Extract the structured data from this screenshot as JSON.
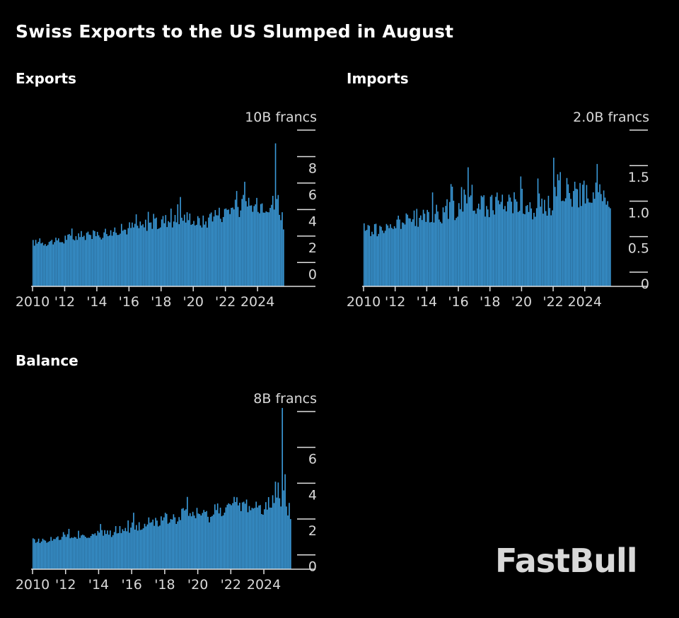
{
  "title": "Swiss Exports to the US Slumped in August",
  "logo_text": "FastBull",
  "colors": {
    "bar": "#3b9ad9",
    "axis": "#e0e0e0",
    "text": "#d9d9d9",
    "background": "#000000"
  },
  "chart_data": [
    {
      "id": "exports",
      "type": "bar",
      "title": "Exports",
      "unit_label": "10B francs",
      "x_start": "2010-01",
      "x_end": "2025-08",
      "x_tick_labels": [
        "2010",
        "'12",
        "'14",
        "'16",
        "'18",
        "'20",
        "'22",
        "2024"
      ],
      "y_ticks": [
        0,
        2,
        4,
        6,
        8,
        10
      ],
      "y_tick_labels": [
        "0",
        "2",
        "4",
        "6",
        "8"
      ],
      "ylim": [
        -1.8,
        10
      ],
      "annual_means": [
        1.5,
        1.6,
        1.9,
        2.0,
        2.1,
        2.5,
        2.7,
        2.9,
        3.2,
        3.4,
        3.1,
        3.7,
        4.1,
        4.2,
        4.5
      ],
      "year_2025": [
        4.0,
        9.0,
        4.8,
        5.1,
        3.6,
        3.2,
        3.8,
        2.5
      ]
    },
    {
      "id": "imports",
      "type": "bar",
      "title": "Imports",
      "unit_label": "2.0B francs",
      "x_start": "2010-01",
      "x_end": "2025-08",
      "x_tick_labels": [
        "2010",
        "'12",
        "'14",
        "'16",
        "'18",
        "'20",
        "'22",
        "2024"
      ],
      "y_ticks": [
        0,
        0.5,
        1.0,
        1.5,
        2.0
      ],
      "y_tick_labels": [
        "0",
        "0.5",
        "1.0",
        "1.5"
      ],
      "ylim": [
        -0.2,
        2.0
      ],
      "annual_means": [
        0.6,
        0.6,
        0.72,
        0.76,
        0.82,
        0.88,
        1.02,
        0.93,
        0.97,
        1.0,
        0.85,
        0.95,
        1.2,
        1.1,
        1.12
      ],
      "year_2025": [
        1.1,
        1.0,
        1.15,
        1.05,
        0.95,
        1.0,
        0.92,
        0.9
      ]
    },
    {
      "id": "balance",
      "type": "bar",
      "title": "Balance",
      "unit_label": "8B francs",
      "x_start": "2010-01",
      "x_end": "2025-08",
      "x_tick_labels": [
        "2010",
        "'12",
        "'14",
        "'16",
        "'18",
        "'20",
        "'22",
        "2024"
      ],
      "y_ticks": [
        0,
        2,
        4,
        6,
        8
      ],
      "y_tick_labels": [
        "0",
        "2",
        "4",
        "6"
      ],
      "ylim": [
        -0.8,
        8
      ],
      "annual_means": [
        0.8,
        0.9,
        1.0,
        1.1,
        1.2,
        1.4,
        1.6,
        1.9,
        2.0,
        2.3,
        2.2,
        2.6,
        2.8,
        2.7,
        2.9
      ],
      "year_2025": [
        2.7,
        8.2,
        3.6,
        4.5,
        2.7,
        2.2,
        2.9,
        2.0
      ]
    }
  ]
}
